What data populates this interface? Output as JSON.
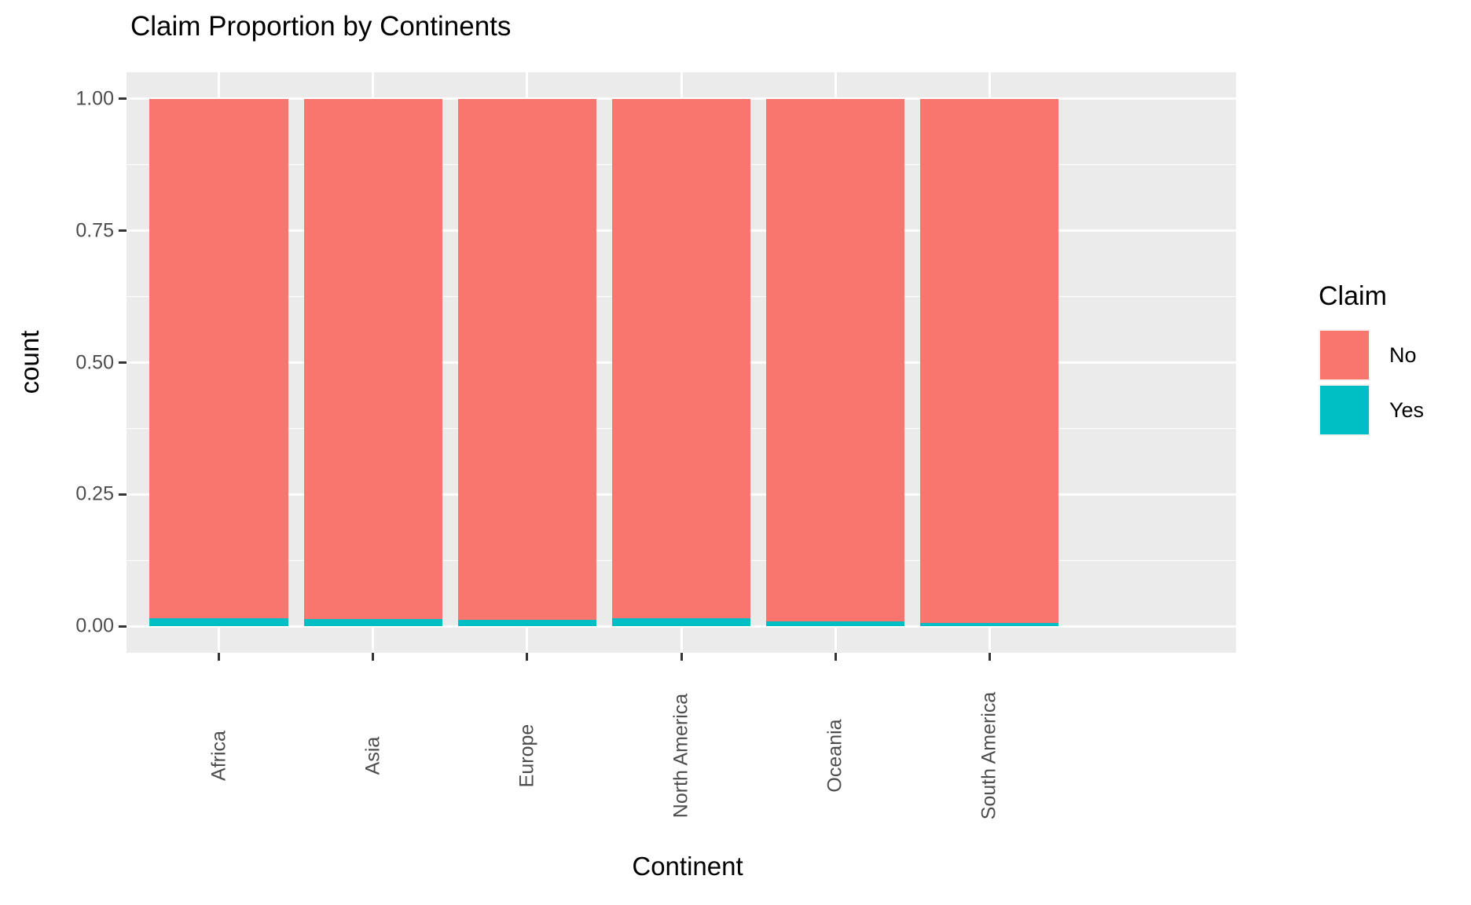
{
  "title": "Claim Proportion by Continents",
  "axes": {
    "x_title": "Continent",
    "y_title": "count"
  },
  "legend": {
    "title": "Claim",
    "items": [
      {
        "label": "No",
        "color": "#F8766D"
      },
      {
        "label": "Yes",
        "color": "#00BFC4"
      }
    ]
  },
  "chart_data": {
    "type": "bar",
    "subtype": "stacked-proportion",
    "title": "Claim Proportion by Continents",
    "xlabel": "Continent",
    "ylabel": "count",
    "categories": [
      "Africa",
      "Asia",
      "Europe",
      "North America",
      "Oceania",
      "South America"
    ],
    "series": [
      {
        "name": "No",
        "color": "#F8766D",
        "values": [
          0.984,
          0.986,
          0.987,
          0.985,
          0.99,
          0.993
        ]
      },
      {
        "name": "Yes",
        "color": "#00BFC4",
        "values": [
          0.016,
          0.014,
          0.013,
          0.015,
          0.01,
          0.007
        ]
      }
    ],
    "ylim": [
      0,
      1
    ],
    "y_major_ticks": [
      {
        "label": "0.00",
        "value": 0.0
      },
      {
        "label": "0.25",
        "value": 0.25
      },
      {
        "label": "0.50",
        "value": 0.5
      },
      {
        "label": "0.75",
        "value": 0.75
      },
      {
        "label": "1.00",
        "value": 1.0
      }
    ],
    "y_minor_ticks": [
      0.125,
      0.375,
      0.625,
      0.875
    ],
    "legend_position": "right",
    "grid": "major and minor horizontal white lines, major vertical white lines at category centers",
    "panel_background": "#EBEBEB",
    "bar_width_fraction": 0.9,
    "x_label_rotation_deg": 90
  }
}
